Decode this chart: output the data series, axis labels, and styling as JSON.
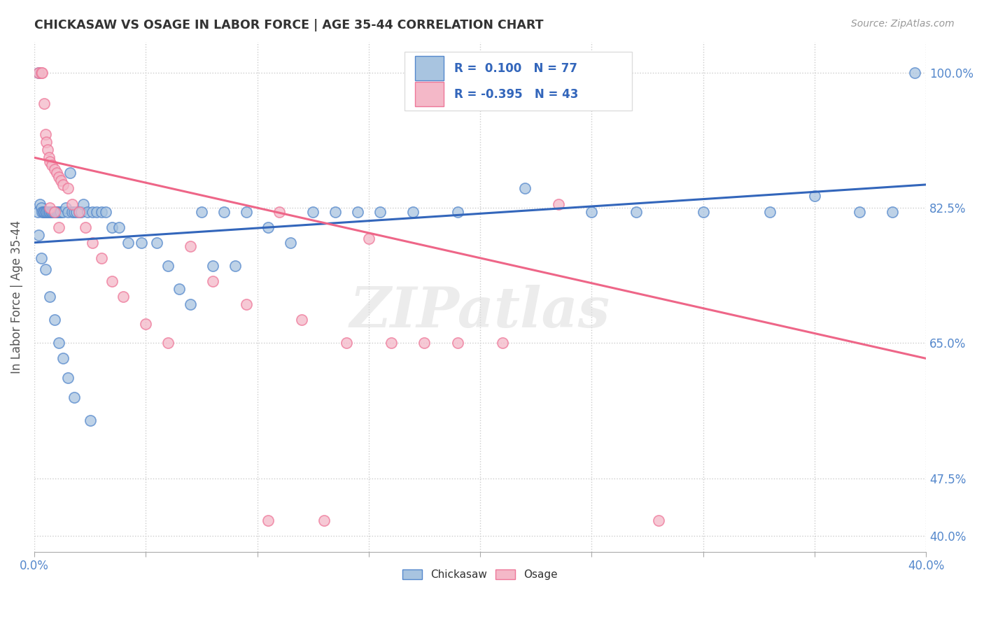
{
  "title": "CHICKASAW VS OSAGE IN LABOR FORCE | AGE 35-44 CORRELATION CHART",
  "source": "Source: ZipAtlas.com",
  "ylabel": "In Labor Force | Age 35-44",
  "x_min": 0.0,
  "x_max": 40.0,
  "y_min": 38.0,
  "y_max": 104.0,
  "yticks": [
    40.0,
    47.5,
    65.0,
    82.5,
    100.0
  ],
  "ytick_labels": [
    "40.0%",
    "47.5%",
    "65.0%",
    "82.5%",
    "100.0%"
  ],
  "watermark": "ZIPatlas",
  "chickasaw_R": 0.1,
  "chickasaw_N": 77,
  "osage_R": -0.395,
  "osage_N": 43,
  "chickasaw_color": "#A8C4E0",
  "osage_color": "#F4B8C8",
  "chickasaw_edge_color": "#5588CC",
  "osage_edge_color": "#EE7799",
  "chickasaw_line_color": "#3366BB",
  "osage_line_color": "#EE6688",
  "background_color": "#FFFFFF",
  "grid_color": "#CCCCCC",
  "chick_line_y0": 78.0,
  "chick_line_y1": 85.5,
  "osage_line_y0": 89.0,
  "osage_line_y1": 63.0,
  "chickasaw_x": [
    0.15,
    0.2,
    0.25,
    0.3,
    0.35,
    0.4,
    0.45,
    0.5,
    0.55,
    0.6,
    0.65,
    0.7,
    0.75,
    0.8,
    0.85,
    0.9,
    0.95,
    1.0,
    1.05,
    1.1,
    1.15,
    1.2,
    1.3,
    1.4,
    1.5,
    1.6,
    1.7,
    1.8,
    1.9,
    2.0,
    2.1,
    2.2,
    2.4,
    2.6,
    2.8,
    3.0,
    3.2,
    3.5,
    3.8,
    4.2,
    4.8,
    5.5,
    6.0,
    6.5,
    7.0,
    7.5,
    8.0,
    8.5,
    9.0,
    9.5,
    10.5,
    11.5,
    12.5,
    13.5,
    14.5,
    15.5,
    17.0,
    19.0,
    22.0,
    25.0,
    27.0,
    30.0,
    33.0,
    35.0,
    37.0,
    38.5,
    39.5,
    0.2,
    0.3,
    0.5,
    0.7,
    0.9,
    1.1,
    1.3,
    1.5,
    1.8,
    2.5
  ],
  "chickasaw_y": [
    82.0,
    100.0,
    83.0,
    82.5,
    82.0,
    82.0,
    82.0,
    82.0,
    82.0,
    82.0,
    82.0,
    82.0,
    82.0,
    82.0,
    82.0,
    82.0,
    82.0,
    82.0,
    82.0,
    82.0,
    82.0,
    82.0,
    82.0,
    82.5,
    82.0,
    87.0,
    82.0,
    82.0,
    82.0,
    82.0,
    82.0,
    83.0,
    82.0,
    82.0,
    82.0,
    82.0,
    82.0,
    80.0,
    80.0,
    78.0,
    78.0,
    78.0,
    75.0,
    72.0,
    70.0,
    82.0,
    75.0,
    82.0,
    75.0,
    82.0,
    80.0,
    78.0,
    82.0,
    82.0,
    82.0,
    82.0,
    82.0,
    82.0,
    85.0,
    82.0,
    82.0,
    82.0,
    82.0,
    84.0,
    82.0,
    82.0,
    100.0,
    79.0,
    76.0,
    74.5,
    71.0,
    68.0,
    65.0,
    63.0,
    60.5,
    58.0,
    55.0
  ],
  "osage_x": [
    0.2,
    0.3,
    0.35,
    0.45,
    0.5,
    0.55,
    0.6,
    0.65,
    0.7,
    0.8,
    0.9,
    1.0,
    1.1,
    1.2,
    1.3,
    1.5,
    1.7,
    2.0,
    2.3,
    2.6,
    3.0,
    3.5,
    4.0,
    5.0,
    6.0,
    7.0,
    8.0,
    9.5,
    11.0,
    12.0,
    14.0,
    15.0,
    16.0,
    17.5,
    19.0,
    21.0,
    23.5,
    10.5,
    13.0,
    28.0,
    0.7,
    0.9,
    1.1
  ],
  "osage_y": [
    100.0,
    100.0,
    100.0,
    96.0,
    92.0,
    91.0,
    90.0,
    89.0,
    88.5,
    88.0,
    87.5,
    87.0,
    86.5,
    86.0,
    85.5,
    85.0,
    83.0,
    82.0,
    80.0,
    78.0,
    76.0,
    73.0,
    71.0,
    67.5,
    65.0,
    77.5,
    73.0,
    70.0,
    82.0,
    68.0,
    65.0,
    78.5,
    65.0,
    65.0,
    65.0,
    65.0,
    83.0,
    42.0,
    42.0,
    42.0,
    82.5,
    82.0,
    80.0
  ]
}
